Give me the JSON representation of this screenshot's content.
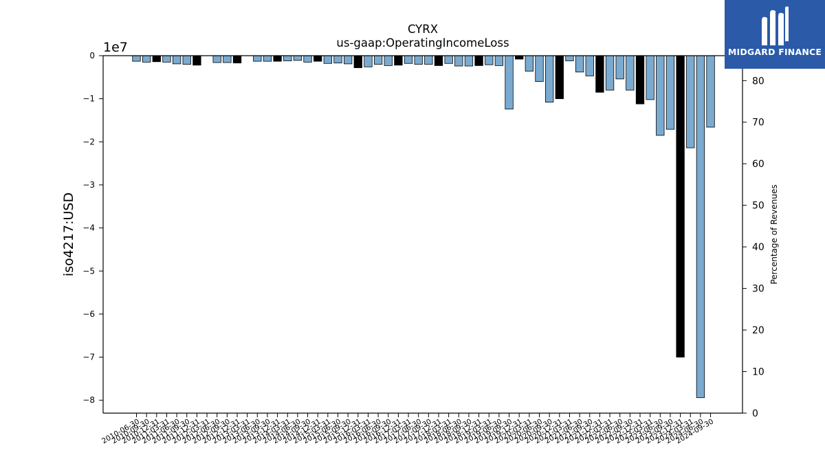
{
  "chart_data": {
    "type": "bar",
    "title": "CYRX",
    "subtitle": "us-gaap:OperatingIncomeLoss",
    "ylabel": "iso4217:USD",
    "y2label": "Percentage of Revenues",
    "offset_text": "1e7",
    "ylim": [
      -83000000,
      0
    ],
    "y2lim": [
      0,
      86
    ],
    "yticks": [
      0,
      -10000000,
      -20000000,
      -30000000,
      -40000000,
      -50000000,
      -60000000,
      -70000000,
      -80000000
    ],
    "ytick_labels": [
      "0",
      "−1",
      "−2",
      "−3",
      "−4",
      "−5",
      "−6",
      "−7",
      "−8"
    ],
    "y2ticks": [
      0,
      10,
      20,
      30,
      40,
      50,
      60,
      70,
      80
    ],
    "y2tick_labels": [
      "0",
      "10",
      "20",
      "30",
      "40",
      "50",
      "60",
      "70",
      "80"
    ],
    "colors": {
      "quarterly": "#7aaad0",
      "annual": "#000000"
    },
    "categories": [
      "2010-06-30",
      "2010-09-30",
      "2010-12-31",
      "2011-03-31",
      "2011-06-30",
      "2011-09-30",
      "2011-12-31",
      "2012-03-31",
      "2012-06-30",
      "2012-09-30",
      "2012-12-31",
      "2013-03-31",
      "2013-06-30",
      "2013-09-30",
      "2013-12-31",
      "2014-03-31",
      "2014-06-30",
      "2014-09-30",
      "2014-12-31",
      "2015-03-31",
      "2015-06-30",
      "2015-09-30",
      "2015-12-31",
      "2016-03-31",
      "2016-06-30",
      "2016-09-30",
      "2016-12-31",
      "2017-03-31",
      "2017-06-30",
      "2017-09-30",
      "2017-12-31",
      "2018-03-31",
      "2018-06-30",
      "2018-09-30",
      "2018-12-31",
      "2019-03-31",
      "2019-06-30",
      "2019-09-30",
      "2019-12-31",
      "2020-03-31",
      "2020-06-30",
      "2020-09-30",
      "2020-12-31",
      "2021-03-31",
      "2021-06-30",
      "2021-09-30",
      "2021-12-31",
      "2022-03-31",
      "2022-06-30",
      "2022-09-30",
      "2022-12-31",
      "2023-03-31",
      "2023-06-30",
      "2023-09-30",
      "2023-12-31",
      "2024-03-31",
      "2024-06-30",
      "2024-09-30"
    ],
    "bars": [
      {
        "category_index": 0,
        "value": -1300000,
        "annual": false
      },
      {
        "category_index": 1,
        "value": -1500000,
        "annual": false
      },
      {
        "category_index": 2,
        "value": -1400000,
        "annual": true
      },
      {
        "category_index": 3,
        "value": -1500000,
        "annual": false
      },
      {
        "category_index": 4,
        "value": -1900000,
        "annual": false
      },
      {
        "category_index": 5,
        "value": -2000000,
        "annual": false
      },
      {
        "category_index": 6,
        "value": -2200000,
        "annual": true
      },
      {
        "category_index": 8,
        "value": -1600000,
        "annual": false
      },
      {
        "category_index": 9,
        "value": -1600000,
        "annual": false
      },
      {
        "category_index": 10,
        "value": -1700000,
        "annual": true
      },
      {
        "category_index": 12,
        "value": -1300000,
        "annual": false
      },
      {
        "category_index": 13,
        "value": -1300000,
        "annual": false
      },
      {
        "category_index": 14,
        "value": -1300000,
        "annual": true
      },
      {
        "category_index": 15,
        "value": -1200000,
        "annual": false
      },
      {
        "category_index": 16,
        "value": -1100000,
        "annual": false
      },
      {
        "category_index": 17,
        "value": -1500000,
        "annual": false
      },
      {
        "category_index": 18,
        "value": -1300000,
        "annual": true
      },
      {
        "category_index": 19,
        "value": -1800000,
        "annual": false
      },
      {
        "category_index": 20,
        "value": -1700000,
        "annual": false
      },
      {
        "category_index": 21,
        "value": -1900000,
        "annual": false
      },
      {
        "category_index": 22,
        "value": -2800000,
        "annual": true
      },
      {
        "category_index": 23,
        "value": -2600000,
        "annual": false
      },
      {
        "category_index": 24,
        "value": -2000000,
        "annual": false
      },
      {
        "category_index": 25,
        "value": -2300000,
        "annual": false
      },
      {
        "category_index": 26,
        "value": -2200000,
        "annual": true
      },
      {
        "category_index": 27,
        "value": -1800000,
        "annual": false
      },
      {
        "category_index": 28,
        "value": -2000000,
        "annual": false
      },
      {
        "category_index": 29,
        "value": -2000000,
        "annual": false
      },
      {
        "category_index": 30,
        "value": -2300000,
        "annual": true
      },
      {
        "category_index": 31,
        "value": -1800000,
        "annual": false
      },
      {
        "category_index": 32,
        "value": -2400000,
        "annual": false
      },
      {
        "category_index": 33,
        "value": -2400000,
        "annual": false
      },
      {
        "category_index": 34,
        "value": -2300000,
        "annual": true
      },
      {
        "category_index": 35,
        "value": -2100000,
        "annual": false
      },
      {
        "category_index": 36,
        "value": -2300000,
        "annual": false
      },
      {
        "category_index": 37,
        "value": -12400000,
        "annual": false
      },
      {
        "category_index": 38,
        "value": -800000,
        "annual": true
      },
      {
        "category_index": 39,
        "value": -3600000,
        "annual": false
      },
      {
        "category_index": 40,
        "value": -6000000,
        "annual": false
      },
      {
        "category_index": 41,
        "value": -10800000,
        "annual": false
      },
      {
        "category_index": 42,
        "value": -10000000,
        "annual": true
      },
      {
        "category_index": 43,
        "value": -1200000,
        "annual": false
      },
      {
        "category_index": 44,
        "value": -3800000,
        "annual": false
      },
      {
        "category_index": 45,
        "value": -4700000,
        "annual": false
      },
      {
        "category_index": 46,
        "value": -8500000,
        "annual": true
      },
      {
        "category_index": 47,
        "value": -8000000,
        "annual": false
      },
      {
        "category_index": 48,
        "value": -5400000,
        "annual": false
      },
      {
        "category_index": 49,
        "value": -8000000,
        "annual": false
      },
      {
        "category_index": 50,
        "value": -11200000,
        "annual": true
      },
      {
        "category_index": 51,
        "value": -10200000,
        "annual": false
      },
      {
        "category_index": 52,
        "value": -18500000,
        "annual": false
      },
      {
        "category_index": 53,
        "value": -17100000,
        "annual": false
      },
      {
        "category_index": 54,
        "value": -70000000,
        "annual": true
      },
      {
        "category_index": 55,
        "value": -21400000,
        "annual": false
      },
      {
        "category_index": 56,
        "value": -79400000,
        "annual": false
      },
      {
        "category_index": 57,
        "value": -16600000,
        "annual": false
      }
    ],
    "grid": false,
    "legend": "none"
  },
  "brand": {
    "name": "MIDGARD FINANCE",
    "background": "#2a5aa8",
    "text_color": "#ffffff",
    "icon": "midgard-logo-icon"
  }
}
